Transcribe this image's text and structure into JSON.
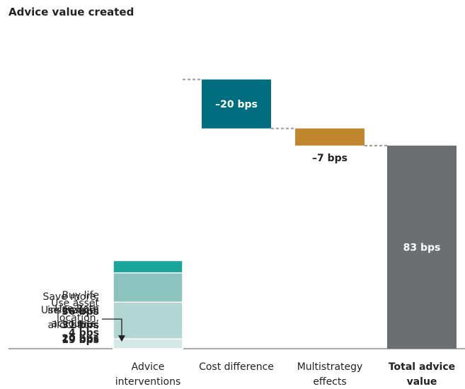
{
  "chart_data": {
    "type": "waterfall",
    "title": "Advice value created",
    "categories": [
      "Advice interventions",
      "Cost difference",
      "Multistrategy effects",
      "Total advice value"
    ],
    "segments": [
      {
        "name": "Save more,",
        "value": 36,
        "value_label": "36 bps",
        "color": "#1aa59a"
      },
      {
        "name": "Use Roth accounts,",
        "value": 20,
        "value_label": "20 bps",
        "color": "#62b2ab"
      },
      {
        "name": "Buy life insurance,",
        "value": 31,
        "value_label": "31 bps",
        "color": "#8dc3bf"
      },
      {
        "name": "Use custom allocation,",
        "value": 19,
        "value_label": "19 bps",
        "color": "#b2d6d4"
      },
      {
        "name": "Use asset location,",
        "value": 4,
        "value_label": "4 bps",
        "color": "#d6e8e6"
      }
    ],
    "steps": [
      {
        "value": -20,
        "value_label": "–20 bps",
        "color": "#006e7f"
      },
      {
        "value": -7,
        "value_label": "–7 bps",
        "color": "#c0872e"
      }
    ],
    "total": {
      "value": 83,
      "value_label": "83 bps",
      "color": "#6d6e71"
    }
  }
}
